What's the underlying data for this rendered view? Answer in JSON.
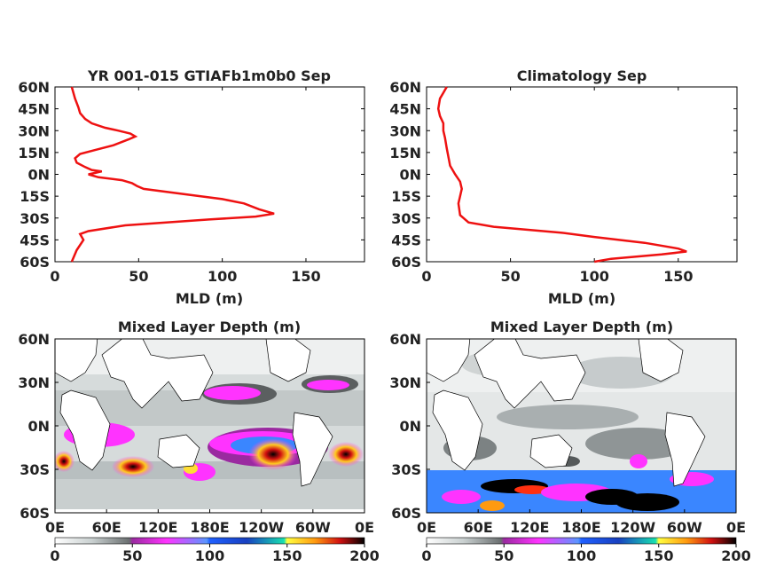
{
  "colors": {
    "profile_line": "#ee1111",
    "axis": "#000000",
    "land": "#ffffff"
  },
  "chart_data": [
    {
      "type": "line",
      "title": "YR 001-015 GTIAFb1m0b0 Sep",
      "xlabel": "MLD (m)",
      "ylabel": "",
      "xlim": [
        0,
        185
      ],
      "ylim": [
        -60,
        60
      ],
      "xticks": [
        "0",
        "50",
        "100",
        "150"
      ],
      "yticks": [
        "60N",
        "45N",
        "30N",
        "15N",
        "0N",
        "15S",
        "30S",
        "45S",
        "60S"
      ],
      "series": [
        {
          "name": "",
          "x": [
            10,
            12,
            14,
            15,
            18,
            22,
            30,
            38,
            45,
            48,
            44,
            35,
            25,
            15,
            12,
            13,
            18,
            22,
            28,
            24,
            20,
            26,
            40,
            46,
            49,
            53,
            80,
            100,
            113,
            122,
            131,
            120,
            92,
            42,
            20,
            15,
            17,
            13,
            10
          ],
          "y": [
            60,
            52,
            46,
            42,
            38,
            35,
            32,
            30,
            28,
            26,
            24,
            20,
            17,
            14,
            11,
            8,
            5,
            3,
            2,
            1,
            0,
            -2,
            -4,
            -6,
            -8,
            -10,
            -14,
            -17,
            -20,
            -24,
            -27,
            -29,
            -31,
            -35,
            -39,
            -41,
            -45,
            -52,
            -60
          ]
        }
      ]
    },
    {
      "type": "line",
      "title": "Climatology Sep",
      "xlabel": "MLD (m)",
      "ylabel": "",
      "xlim": [
        0,
        185
      ],
      "ylim": [
        -60,
        60
      ],
      "xticks": [
        "0",
        "50",
        "100",
        "150"
      ],
      "yticks": [
        "60N",
        "45N",
        "30N",
        "15N",
        "0N",
        "15S",
        "30S",
        "45S",
        "60S"
      ],
      "series": [
        {
          "name": "",
          "x": [
            12,
            10,
            8,
            7,
            8,
            10,
            10,
            11,
            12,
            13,
            14,
            17,
            20,
            21,
            19,
            20,
            25,
            40,
            80,
            100,
            130,
            150,
            155,
            140,
            110,
            100
          ],
          "y": [
            60,
            56,
            52,
            45,
            40,
            35,
            30,
            25,
            18,
            12,
            6,
            0,
            -5,
            -10,
            -20,
            -28,
            -33,
            -36,
            -40,
            -43,
            -47,
            -51,
            -53,
            -55,
            -58,
            -60
          ]
        }
      ]
    },
    {
      "type": "heatmap",
      "title": "Mixed Layer Depth (m)",
      "xticks": [
        "0E",
        "60E",
        "120E",
        "180E",
        "120W",
        "60W",
        "0E"
      ],
      "yticks": [
        "60N",
        "30N",
        "0N",
        "30S",
        "60S"
      ],
      "colorbar_ticks": [
        "0",
        "50",
        "100",
        "150",
        "200"
      ],
      "colorbar_range": [
        0,
        200
      ]
    },
    {
      "type": "heatmap",
      "title": "Mixed Layer Depth (m)",
      "xticks": [
        "0E",
        "60E",
        "120E",
        "180E",
        "120W",
        "60W",
        "0E"
      ],
      "yticks": [
        "60N",
        "30N",
        "0N",
        "30S",
        "60S"
      ],
      "colorbar_ticks": [
        "0",
        "50",
        "100",
        "150",
        "200"
      ],
      "colorbar_range": [
        0,
        200
      ]
    }
  ]
}
